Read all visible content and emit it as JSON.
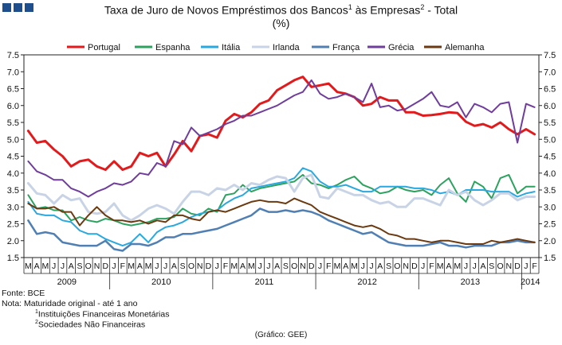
{
  "header": {
    "title_part1": "Taxa de Juro de Novos Empréstimos dos Bancos",
    "title_sup1": "1",
    "title_part2": " às Empresas",
    "title_sup2": "2",
    "title_part3": " - Total",
    "title_line2": "(%)"
  },
  "footer": {
    "source": "Fonte: BCE",
    "note": "Nota: Maturidade original - até 1 ano",
    "note1_sup": "1",
    "note1": "Instituições Financeiras Monetárias",
    "note2_sup": "2",
    "note2": "Sociedades Não Financeiras",
    "credit": "(Gráfico: GEE)"
  },
  "chart_data": {
    "type": "line",
    "x": [
      "2009-03",
      "2009-04",
      "2009-05",
      "2009-06",
      "2009-07",
      "2009-08",
      "2009-09",
      "2009-10",
      "2009-11",
      "2009-12",
      "2010-01",
      "2010-02",
      "2010-03",
      "2010-04",
      "2010-05",
      "2010-06",
      "2010-07",
      "2010-08",
      "2010-09",
      "2010-10",
      "2010-11",
      "2010-12",
      "2011-01",
      "2011-02",
      "2011-03",
      "2011-04",
      "2011-05",
      "2011-06",
      "2011-07",
      "2011-08",
      "2011-09",
      "2011-10",
      "2011-11",
      "2011-12",
      "2012-01",
      "2012-02",
      "2012-03",
      "2012-04",
      "2012-05",
      "2012-06",
      "2012-07",
      "2012-08",
      "2012-09",
      "2012-10",
      "2012-11",
      "2012-12",
      "2013-01",
      "2013-02",
      "2013-03",
      "2013-04",
      "2013-05",
      "2013-06",
      "2013-07",
      "2013-08",
      "2013-09",
      "2013-10",
      "2013-11",
      "2013-12",
      "2014-01",
      "2014-02"
    ],
    "month_labels": [
      "M",
      "A",
      "M",
      "J",
      "J",
      "A",
      "S",
      "O",
      "N",
      "D",
      "J",
      "F",
      "M",
      "A",
      "M",
      "J",
      "J",
      "A",
      "S",
      "O",
      "N",
      "D",
      "J",
      "F",
      "M",
      "A",
      "M",
      "J",
      "J",
      "A",
      "S",
      "O",
      "N",
      "D",
      "J",
      "F",
      "M",
      "A",
      "M",
      "J",
      "J",
      "A",
      "S",
      "O",
      "N",
      "D",
      "J",
      "F",
      "M",
      "A",
      "M",
      "J",
      "J",
      "A",
      "S",
      "O",
      "N",
      "D",
      "J",
      "F"
    ],
    "years": [
      {
        "label": "2009",
        "start": 0,
        "end": 9
      },
      {
        "label": "2010",
        "start": 10,
        "end": 21
      },
      {
        "label": "2011",
        "start": 22,
        "end": 33
      },
      {
        "label": "2012",
        "start": 34,
        "end": 45
      },
      {
        "label": "2013",
        "start": 46,
        "end": 57
      },
      {
        "label": "2014",
        "start": 58,
        "end": 59
      }
    ],
    "ylim": [
      1.5,
      7.5
    ],
    "yticks": [
      "1.5",
      "2.0",
      "2.5",
      "3.0",
      "3.5",
      "4.0",
      "4.5",
      "5.0",
      "5.5",
      "6.0",
      "6.5",
      "7.0",
      "7.5"
    ],
    "grid": false,
    "legend_position": "top",
    "series": [
      {
        "name": "Portugal",
        "color": "#e31a1c",
        "width": 3,
        "values": [
          5.25,
          4.9,
          4.95,
          4.7,
          4.5,
          4.2,
          4.35,
          4.4,
          4.2,
          4.1,
          4.35,
          4.1,
          4.2,
          4.6,
          4.5,
          4.6,
          4.2,
          4.55,
          4.95,
          4.65,
          5.1,
          5.15,
          5.05,
          5.55,
          5.75,
          5.65,
          5.8,
          6.05,
          6.15,
          6.45,
          6.6,
          6.75,
          6.85,
          6.55,
          6.6,
          6.65,
          6.4,
          6.35,
          6.25,
          6.0,
          6.05,
          6.25,
          6.15,
          6.15,
          5.8,
          5.8,
          5.7,
          5.72,
          5.75,
          5.8,
          5.78,
          5.52,
          5.4,
          5.45,
          5.35,
          5.5,
          5.3,
          5.15,
          5.3,
          5.15
        ]
      },
      {
        "name": "Espanha",
        "color": "#2ca25f",
        "width": 2,
        "values": [
          3.35,
          2.95,
          3.0,
          2.9,
          2.9,
          2.6,
          2.7,
          2.6,
          2.55,
          2.65,
          2.6,
          2.5,
          2.45,
          2.5,
          2.55,
          2.65,
          2.65,
          2.7,
          2.95,
          2.8,
          2.75,
          2.95,
          2.85,
          3.35,
          3.4,
          3.65,
          3.45,
          3.55,
          3.6,
          3.65,
          3.7,
          3.75,
          3.95,
          3.7,
          3.65,
          3.55,
          3.65,
          3.8,
          3.9,
          3.65,
          3.55,
          3.4,
          3.45,
          3.6,
          3.5,
          3.45,
          3.5,
          3.35,
          3.65,
          3.85,
          3.4,
          3.15,
          3.75,
          3.6,
          3.25,
          3.85,
          3.95,
          3.4,
          3.6,
          3.6
        ]
      },
      {
        "name": "Itália",
        "color": "#29a8e0",
        "width": 2,
        "values": [
          3.15,
          2.8,
          2.75,
          2.75,
          2.6,
          2.55,
          2.3,
          2.2,
          2.2,
          2.05,
          1.95,
          1.85,
          1.95,
          2.2,
          1.95,
          2.25,
          2.4,
          2.45,
          2.55,
          2.7,
          2.8,
          2.85,
          2.9,
          3.1,
          3.25,
          3.35,
          3.55,
          3.6,
          3.65,
          3.7,
          3.75,
          3.85,
          4.15,
          4.05,
          3.75,
          3.6,
          3.6,
          3.65,
          3.55,
          3.45,
          3.45,
          3.6,
          3.6,
          3.6,
          3.6,
          3.55,
          3.55,
          3.5,
          3.4,
          3.45,
          3.35,
          3.5,
          3.5,
          3.5,
          3.45,
          3.45,
          3.45,
          3.3,
          3.4,
          3.45
        ]
      },
      {
        "name": "Irlanda",
        "color": "#c8d4e6",
        "width": 3,
        "values": [
          3.7,
          3.4,
          3.35,
          3.1,
          3.35,
          3.2,
          3.25,
          2.85,
          2.8,
          2.85,
          3.1,
          2.75,
          2.6,
          2.75,
          2.95,
          3.05,
          2.95,
          2.8,
          3.15,
          3.45,
          3.45,
          3.35,
          3.55,
          3.5,
          3.65,
          3.5,
          3.7,
          3.65,
          3.8,
          3.9,
          3.85,
          3.45,
          3.85,
          3.95,
          3.3,
          3.25,
          3.55,
          3.45,
          3.35,
          3.35,
          3.2,
          3.1,
          3.15,
          3.0,
          3.0,
          3.25,
          3.25,
          3.15,
          3.05,
          3.5,
          3.35,
          3.45,
          3.2,
          3.05,
          3.2,
          3.4,
          3.4,
          3.2,
          3.3,
          3.3
        ]
      },
      {
        "name": "França",
        "color": "#4f7fb3",
        "width": 2.5,
        "values": [
          2.6,
          2.2,
          2.25,
          2.2,
          1.95,
          1.9,
          1.85,
          1.85,
          1.85,
          2.0,
          1.75,
          1.7,
          1.9,
          1.9,
          1.85,
          1.95,
          2.1,
          2.1,
          2.2,
          2.2,
          2.25,
          2.3,
          2.35,
          2.45,
          2.55,
          2.65,
          2.75,
          2.95,
          2.85,
          2.85,
          2.9,
          2.85,
          2.9,
          2.85,
          2.75,
          2.6,
          2.5,
          2.4,
          2.3,
          2.2,
          2.25,
          2.1,
          1.95,
          1.9,
          1.85,
          1.85,
          1.85,
          1.9,
          1.95,
          1.85,
          1.85,
          1.8,
          1.85,
          1.85,
          1.85,
          1.95,
          1.95,
          2.0,
          1.95,
          1.95
        ]
      },
      {
        "name": "Grécia",
        "color": "#6f3d9b",
        "width": 2,
        "values": [
          4.35,
          4.05,
          3.95,
          3.8,
          3.8,
          3.55,
          3.45,
          3.3,
          3.45,
          3.55,
          3.7,
          3.65,
          3.75,
          4.0,
          3.95,
          4.3,
          4.2,
          4.95,
          4.85,
          5.35,
          5.1,
          5.2,
          5.3,
          5.45,
          5.55,
          5.7,
          5.7,
          5.8,
          5.9,
          6.0,
          6.15,
          6.3,
          6.4,
          6.75,
          6.35,
          6.2,
          6.25,
          6.35,
          6.25,
          6.1,
          6.65,
          5.95,
          6.0,
          5.85,
          5.9,
          6.05,
          6.2,
          6.4,
          6.0,
          5.95,
          6.1,
          5.65,
          6.05,
          5.95,
          5.8,
          6.05,
          6.1,
          4.9,
          6.05,
          5.95
        ]
      },
      {
        "name": "Alemanha",
        "color": "#6b3a10",
        "width": 2,
        "values": [
          3.1,
          2.95,
          2.95,
          3.0,
          2.85,
          2.85,
          2.45,
          2.75,
          3.0,
          2.75,
          2.6,
          2.6,
          2.55,
          2.6,
          2.5,
          2.6,
          2.55,
          2.75,
          2.75,
          2.65,
          2.6,
          2.85,
          2.9,
          2.85,
          2.95,
          3.05,
          3.15,
          3.2,
          3.15,
          3.15,
          3.1,
          3.25,
          3.15,
          3.05,
          2.85,
          2.75,
          2.65,
          2.55,
          2.45,
          2.4,
          2.45,
          2.35,
          2.2,
          2.15,
          2.05,
          2.05,
          2.0,
          1.95,
          2.0,
          2.0,
          1.95,
          1.9,
          1.9,
          1.9,
          2.0,
          1.95,
          2.0,
          2.05,
          2.0,
          1.95
        ]
      }
    ]
  }
}
